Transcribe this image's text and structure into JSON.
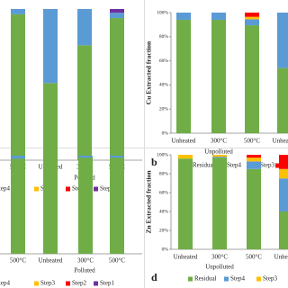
{
  "chart_data": [
    {
      "type": "bar",
      "stacked": true,
      "group_label": "Polluted",
      "categories": [
        "500°C",
        "Unheated",
        "300°C",
        "500°C"
      ],
      "ylim": [
        0,
        100
      ],
      "series": [
        {
          "name": "Residual",
          "color": "#70ad47",
          "values": [
            96.5,
            51,
            76,
            94
          ]
        },
        {
          "name": "Step4",
          "color": "#5b9bd5",
          "values": [
            3.5,
            49,
            24,
            3.5
          ]
        },
        {
          "name": "Step3",
          "color": "#ffc000",
          "values": [
            0,
            0,
            0,
            0
          ]
        },
        {
          "name": "Step2",
          "color": "#ff0000",
          "values": [
            0,
            0,
            0,
            0
          ]
        },
        {
          "name": "Step1",
          "color": "#7030a0",
          "values": [
            0,
            0,
            0,
            2.5
          ]
        }
      ]
    },
    {
      "type": "bar",
      "stacked": true,
      "panel_label": "b",
      "ylabel": "Cu Extracted fraction",
      "group_label": "Unpolluted",
      "categories": [
        "Unheated",
        "300°C",
        "500°C",
        "Unheated"
      ],
      "ylim": [
        0,
        100
      ],
      "yticks": [
        {
          "value": 0,
          "label": "0%"
        },
        {
          "value": 20,
          "label": "20%"
        },
        {
          "value": 40,
          "label": "40%"
        },
        {
          "value": 60,
          "label": "60%"
        },
        {
          "value": 80,
          "label": "80%"
        },
        {
          "value": 100,
          "label": "100%"
        }
      ],
      "series": [
        {
          "name": "Residual",
          "color": "#70ad47",
          "values": [
            94,
            94,
            89.5,
            54
          ]
        },
        {
          "name": "Step4",
          "color": "#5b9bd5",
          "values": [
            6,
            6,
            5,
            46
          ]
        },
        {
          "name": "Step3",
          "color": "#ffc000",
          "values": [
            0,
            0,
            2,
            0
          ]
        },
        {
          "name": "Step2",
          "color": "#ff0000",
          "values": [
            0,
            0,
            3.5,
            0
          ]
        }
      ]
    },
    {
      "type": "bar",
      "stacked": true,
      "group_label": "Polluted",
      "categories": [
        "500°C",
        "Unheated",
        "300°C",
        "500°C"
      ],
      "ylim": [
        0,
        100
      ],
      "series": [
        {
          "name": "Residual",
          "color": "#70ad47",
          "values": [
            97,
            100,
            98,
            98
          ]
        },
        {
          "name": "Step4",
          "color": "#5b9bd5",
          "values": [
            3,
            0,
            2,
            2
          ]
        },
        {
          "name": "Step3",
          "color": "#ffc000",
          "values": [
            0,
            0,
            0,
            0
          ]
        },
        {
          "name": "Step2",
          "color": "#ff0000",
          "values": [
            0,
            0,
            0,
            0
          ]
        },
        {
          "name": "Step1",
          "color": "#7030a0",
          "values": [
            0,
            0,
            0,
            0
          ]
        }
      ]
    },
    {
      "type": "bar",
      "stacked": true,
      "panel_label": "d",
      "ylabel": "Zn Extracted fraction",
      "group_label": "Unpolluted",
      "categories": [
        "Unheated",
        "300°C",
        "500°C",
        "Unheated"
      ],
      "ylim": [
        0,
        100
      ],
      "yticks": [
        {
          "value": 0,
          "label": "0%"
        },
        {
          "value": 20,
          "label": "20%"
        },
        {
          "value": 40,
          "label": "40%"
        },
        {
          "value": 60,
          "label": "60%"
        },
        {
          "value": 80,
          "label": "80%"
        },
        {
          "value": 100,
          "label": "100%"
        }
      ],
      "series": [
        {
          "name": "Residual",
          "color": "#70ad47",
          "values": [
            96,
            97,
            85,
            40
          ]
        },
        {
          "name": "Step4",
          "color": "#5b9bd5",
          "values": [
            0,
            1,
            8,
            35
          ]
        },
        {
          "name": "Step3",
          "color": "#ffc000",
          "values": [
            4,
            2,
            4,
            10
          ]
        },
        {
          "name": "Step2",
          "color": "#ff0000",
          "values": [
            0,
            0,
            3,
            15
          ]
        }
      ]
    }
  ]
}
